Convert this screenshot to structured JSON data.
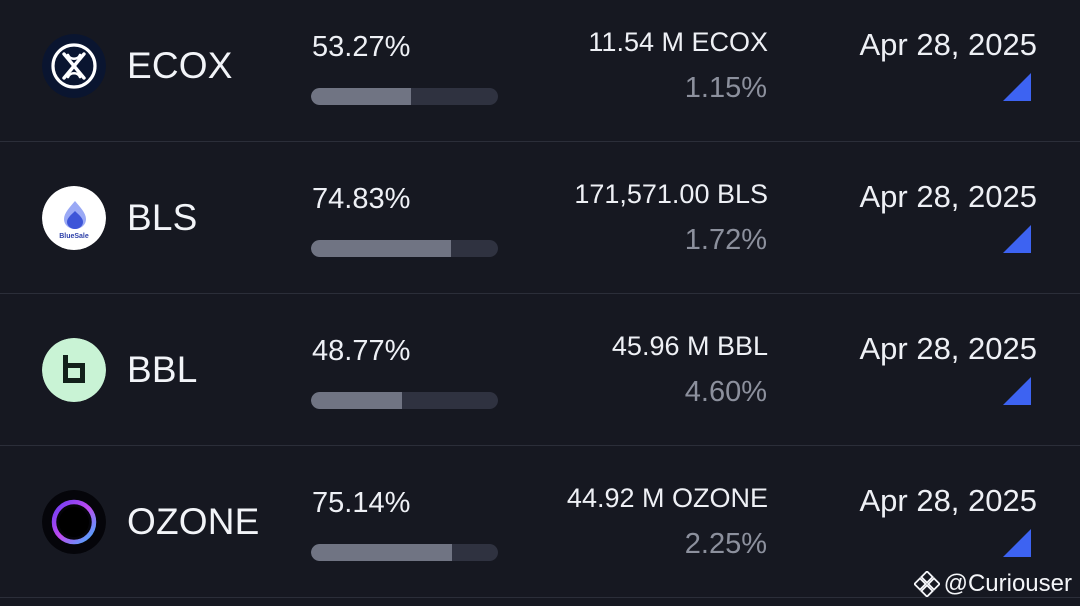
{
  "rows": [
    {
      "symbol": "ECOX",
      "percent": "53.27%",
      "progress": 0.5327,
      "amount": "11.54 M ECOX",
      "share": "1.15%",
      "date": "Apr 28, 2025",
      "logo_icon": "ecox-logo-icon"
    },
    {
      "symbol": "BLS",
      "percent": "74.83%",
      "progress": 0.7483,
      "amount": "171,571.00 BLS",
      "share": "1.72%",
      "date": "Apr 28, 2025",
      "logo_icon": "bluesale-logo-icon",
      "logo_text": "BlueSale"
    },
    {
      "symbol": "BBL",
      "percent": "48.77%",
      "progress": 0.4877,
      "amount": "45.96 M BBL",
      "share": "4.60%",
      "date": "Apr 28, 2025",
      "logo_icon": "bbl-logo-icon"
    },
    {
      "symbol": "OZONE",
      "percent": "75.14%",
      "progress": 0.7514,
      "amount": "44.92 M OZONE",
      "share": "2.25%",
      "date": "Apr 28, 2025",
      "logo_icon": "ozone-logo-icon"
    }
  ],
  "watermark": {
    "text": "@Curiouser",
    "icon": "binance-logo-icon"
  },
  "colors": {
    "background": "#161821",
    "divider": "#2b2e39",
    "bar_track": "#2f3240",
    "bar_fill": "#707483",
    "secondary_text": "#8c909d",
    "corner_accent": "#3d63f2"
  }
}
